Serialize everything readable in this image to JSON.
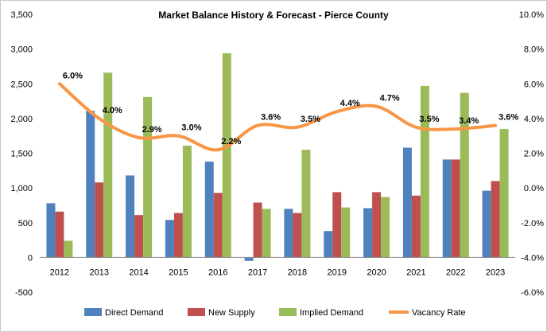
{
  "chart_data": {
    "type": "bar",
    "title": "Market Balance History & Forecast - Pierce County",
    "categories": [
      "2012",
      "2013",
      "2014",
      "2015",
      "2016",
      "2017",
      "2018",
      "2019",
      "2020",
      "2021",
      "2022",
      "2023"
    ],
    "series": [
      {
        "name": "Direct Demand",
        "type": "bar",
        "axis": "left",
        "color": "#4f81bd",
        "values": [
          780,
          2110,
          1180,
          540,
          1380,
          -50,
          700,
          380,
          710,
          1580,
          1410,
          960
        ]
      },
      {
        "name": "New Supply",
        "type": "bar",
        "axis": "left",
        "color": "#c0504d",
        "values": [
          660,
          1080,
          610,
          640,
          930,
          790,
          640,
          940,
          940,
          890,
          1410,
          1100
        ]
      },
      {
        "name": "Implied Demand",
        "type": "bar",
        "axis": "left",
        "color": "#9bbb59",
        "values": [
          240,
          2660,
          2310,
          1610,
          2940,
          700,
          1550,
          720,
          870,
          2470,
          2370,
          1850
        ]
      },
      {
        "name": "Vacancy Rate",
        "type": "line",
        "axis": "right",
        "color": "#f79646",
        "values": [
          6.0,
          4.0,
          2.9,
          3.0,
          2.2,
          3.6,
          3.5,
          4.4,
          4.7,
          3.5,
          3.4,
          3.6
        ],
        "labels": [
          "6.0%",
          "4.0%",
          "2.9%",
          "3.0%",
          "2.2%",
          "3.6%",
          "3.5%",
          "4.4%",
          "4.7%",
          "3.5%",
          "3.4%",
          "3.6%"
        ]
      }
    ],
    "yaxis_left": {
      "min": -500,
      "max": 3500,
      "step": 500,
      "ticks": [
        "-500",
        "0",
        "500",
        "1,000",
        "1,500",
        "2,000",
        "2,500",
        "3,000",
        "3,500"
      ]
    },
    "yaxis_right": {
      "min": -6,
      "max": 10,
      "step": 2,
      "ticks": [
        "-6.0%",
        "-4.0%",
        "-2.0%",
        "0.0%",
        "2.0%",
        "4.0%",
        "6.0%",
        "8.0%",
        "10.0%"
      ]
    },
    "grid": false,
    "legend": "bottom"
  }
}
